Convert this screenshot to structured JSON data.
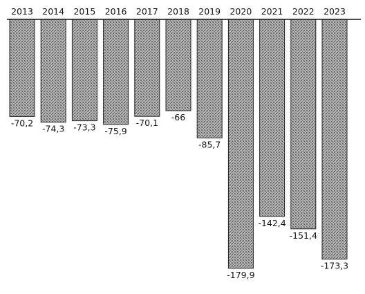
{
  "chart_data": {
    "type": "bar",
    "categories": [
      "2013",
      "2014",
      "2015",
      "2016",
      "2017",
      "2018",
      "2019",
      "2020",
      "2021",
      "2022",
      "2023"
    ],
    "values": [
      -70.2,
      -74.3,
      -73.3,
      -75.9,
      -70.1,
      -66,
      -85.7,
      -179.9,
      -142.4,
      -151.4,
      -173.3
    ],
    "value_labels": [
      "-70,2",
      "-74,3",
      "-73,3",
      "-75,9",
      "-70,1",
      "-66",
      "-85,7",
      "-179,9",
      "-142,4",
      "-151,4",
      "-173,3"
    ],
    "title": "",
    "xlabel": "",
    "ylabel": "",
    "ylim": [
      -180,
      0
    ],
    "x_axis_position": "top",
    "grid": false,
    "legend": "none",
    "bar_color": "#9a9a9a"
  }
}
